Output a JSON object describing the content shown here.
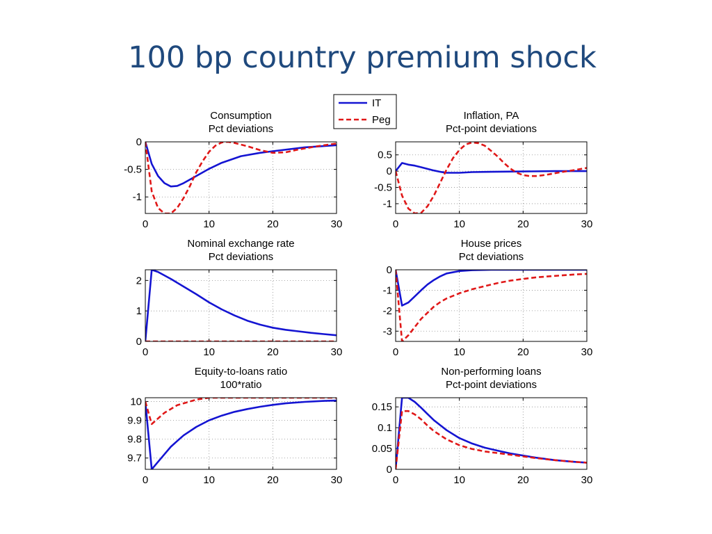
{
  "slide": {
    "title": "100 bp country premium shock"
  },
  "legend": [
    {
      "name": "IT",
      "color": "#1414d2",
      "dash": "solid"
    },
    {
      "name": "Peg",
      "color": "#e01818",
      "dash": "dashed"
    }
  ],
  "chart_data": [
    {
      "type": "line",
      "title": [
        "Consumption",
        "Pct deviations"
      ],
      "xlim": [
        0,
        30
      ],
      "ylim": [
        -1.3,
        0
      ],
      "xticks": [
        0,
        10,
        20,
        30
      ],
      "yticks": [
        0,
        -0.5,
        -1
      ],
      "ytick_labels": [
        "0",
        "-0.5",
        "-1"
      ],
      "grid": true,
      "series": [
        {
          "name": "IT",
          "x": [
            0,
            1,
            2,
            3,
            4,
            5,
            6,
            8,
            10,
            12,
            15,
            18,
            20,
            25,
            30
          ],
          "y": [
            0,
            -0.4,
            -0.62,
            -0.75,
            -0.81,
            -0.8,
            -0.75,
            -0.62,
            -0.49,
            -0.38,
            -0.26,
            -0.2,
            -0.17,
            -0.1,
            -0.06
          ]
        },
        {
          "name": "Peg",
          "x": [
            0,
            1,
            2,
            3,
            4,
            5,
            6,
            7,
            8,
            9,
            10,
            11,
            12,
            13,
            14,
            16,
            18,
            20,
            22,
            24,
            27,
            30
          ],
          "y": [
            0,
            -0.9,
            -1.2,
            -1.3,
            -1.3,
            -1.2,
            -1.02,
            -0.8,
            -0.55,
            -0.35,
            -0.18,
            -0.07,
            -0.01,
            0,
            -0.02,
            -0.08,
            -0.15,
            -0.2,
            -0.19,
            -0.14,
            -0.08,
            -0.03
          ]
        }
      ]
    },
    {
      "type": "line",
      "title": [
        "Inflation, PA",
        "Pct-point deviations"
      ],
      "xlim": [
        0,
        30
      ],
      "ylim": [
        -1.3,
        0.9
      ],
      "xticks": [
        0,
        10,
        20,
        30
      ],
      "yticks": [
        0.5,
        0,
        -0.5,
        -1
      ],
      "ytick_labels": [
        "0.5",
        "0",
        "-0.5",
        "-1"
      ],
      "grid": true,
      "series": [
        {
          "name": "IT",
          "x": [
            0,
            1,
            2,
            3,
            4,
            5,
            6,
            7,
            8,
            10,
            12,
            15,
            20,
            25,
            30
          ],
          "y": [
            0,
            0.25,
            0.2,
            0.17,
            0.12,
            0.07,
            0.02,
            -0.02,
            -0.05,
            -0.05,
            -0.03,
            -0.02,
            -0.01,
            0,
            0
          ]
        },
        {
          "name": "Peg",
          "x": [
            0,
            1,
            2,
            3,
            4,
            5,
            6,
            7,
            8,
            9,
            10,
            11,
            12,
            13,
            14,
            15,
            16,
            17,
            18,
            19,
            20,
            21,
            22,
            23,
            24,
            26,
            28,
            30
          ],
          "y": [
            0,
            -0.75,
            -1.15,
            -1.3,
            -1.28,
            -1.08,
            -0.75,
            -0.35,
            0.05,
            0.4,
            0.65,
            0.82,
            0.88,
            0.86,
            0.78,
            0.62,
            0.45,
            0.25,
            0.08,
            -0.05,
            -0.12,
            -0.15,
            -0.15,
            -0.13,
            -0.1,
            -0.03,
            0.03,
            0.1
          ]
        }
      ]
    },
    {
      "type": "line",
      "title": [
        "Nominal exchange rate",
        "Pct deviations"
      ],
      "xlim": [
        0,
        30
      ],
      "ylim": [
        0,
        2.35
      ],
      "xticks": [
        0,
        10,
        20,
        30
      ],
      "yticks": [
        2,
        1,
        0
      ],
      "ytick_labels": [
        "2",
        "1",
        "0"
      ],
      "grid": true,
      "series": [
        {
          "name": "IT",
          "x": [
            0,
            1,
            2,
            4,
            6,
            8,
            10,
            12,
            14,
            16,
            18,
            20,
            22,
            24,
            26,
            28,
            30
          ],
          "y": [
            0,
            2.35,
            2.28,
            2.05,
            1.8,
            1.55,
            1.28,
            1.05,
            0.85,
            0.68,
            0.55,
            0.45,
            0.38,
            0.33,
            0.28,
            0.24,
            0.2
          ]
        },
        {
          "name": "Peg",
          "x": [
            0,
            30
          ],
          "y": [
            0,
            0
          ]
        }
      ]
    },
    {
      "type": "line",
      "title": [
        "House prices",
        "Pct deviations"
      ],
      "xlim": [
        0,
        30
      ],
      "ylim": [
        -3.5,
        0
      ],
      "xticks": [
        0,
        10,
        20,
        30
      ],
      "yticks": [
        0,
        -1,
        -2,
        -3
      ],
      "ytick_labels": [
        "0",
        "-1",
        "-2",
        "-3"
      ],
      "grid": true,
      "series": [
        {
          "name": "IT",
          "x": [
            0,
            1,
            2,
            3,
            4,
            5,
            6,
            7,
            8,
            10,
            12,
            15,
            20,
            30
          ],
          "y": [
            0,
            -1.75,
            -1.6,
            -1.3,
            -1.0,
            -0.72,
            -0.5,
            -0.32,
            -0.18,
            -0.06,
            -0.02,
            0,
            0,
            0
          ]
        },
        {
          "name": "Peg",
          "x": [
            0,
            1,
            2,
            3,
            4,
            5,
            6,
            7,
            8,
            10,
            12,
            14,
            16,
            18,
            20,
            22,
            25,
            28,
            30
          ],
          "y": [
            0,
            -3.5,
            -3.2,
            -2.8,
            -2.4,
            -2.1,
            -1.8,
            -1.58,
            -1.4,
            -1.15,
            -0.95,
            -0.8,
            -0.65,
            -0.53,
            -0.45,
            -0.37,
            -0.3,
            -0.23,
            -0.2
          ]
        }
      ]
    },
    {
      "type": "line",
      "title": [
        "Equity-to-loans ratio",
        "100*ratio"
      ],
      "xlim": [
        0,
        30
      ],
      "ylim": [
        9.64,
        10.02
      ],
      "xticks": [
        0,
        10,
        20,
        30
      ],
      "yticks": [
        10,
        9.9,
        9.8,
        9.7
      ],
      "ytick_labels": [
        "10",
        "9.9",
        "9.8",
        "9.7"
      ],
      "grid": true,
      "series": [
        {
          "name": "IT",
          "x": [
            0,
            1,
            2,
            3,
            4,
            5,
            6,
            8,
            10,
            12,
            14,
            16,
            18,
            20,
            22,
            25,
            28,
            30
          ],
          "y": [
            10,
            9.64,
            9.68,
            9.72,
            9.76,
            9.79,
            9.82,
            9.865,
            9.9,
            9.925,
            9.945,
            9.96,
            9.972,
            9.982,
            9.99,
            9.998,
            10.003,
            10.005
          ]
        },
        {
          "name": "Peg",
          "x": [
            0,
            1,
            2,
            3,
            4,
            5,
            6,
            7,
            8,
            9,
            10,
            12,
            15,
            20,
            30
          ],
          "y": [
            10,
            9.88,
            9.91,
            9.94,
            9.96,
            9.98,
            9.99,
            10,
            10.01,
            10.015,
            10.02,
            10.02,
            10.02,
            10.02,
            10.02
          ]
        }
      ]
    },
    {
      "type": "line",
      "title": [
        "Non-performing loans",
        "Pct-point deviations"
      ],
      "xlim": [
        0,
        30
      ],
      "ylim": [
        0,
        0.172
      ],
      "xticks": [
        0,
        10,
        20,
        30
      ],
      "yticks": [
        0.15,
        0.1,
        0.05,
        0
      ],
      "ytick_labels": [
        "0.15",
        "0.1",
        "0.05",
        "0"
      ],
      "grid": true,
      "series": [
        {
          "name": "IT",
          "x": [
            0,
            1,
            2,
            3,
            4,
            5,
            6,
            8,
            10,
            12,
            14,
            16,
            18,
            20,
            22,
            25,
            28,
            30
          ],
          "y": [
            0,
            0.172,
            0.172,
            0.162,
            0.148,
            0.133,
            0.118,
            0.094,
            0.075,
            0.062,
            0.052,
            0.045,
            0.038,
            0.033,
            0.028,
            0.022,
            0.018,
            0.016
          ]
        },
        {
          "name": "Peg",
          "x": [
            0,
            1,
            2,
            3,
            4,
            5,
            6,
            8,
            10,
            12,
            14,
            16,
            18,
            20,
            22,
            25,
            28,
            30
          ],
          "y": [
            0,
            0.14,
            0.14,
            0.132,
            0.12,
            0.105,
            0.092,
            0.072,
            0.058,
            0.049,
            0.043,
            0.039,
            0.035,
            0.031,
            0.027,
            0.022,
            0.018,
            0.016
          ]
        }
      ]
    }
  ]
}
